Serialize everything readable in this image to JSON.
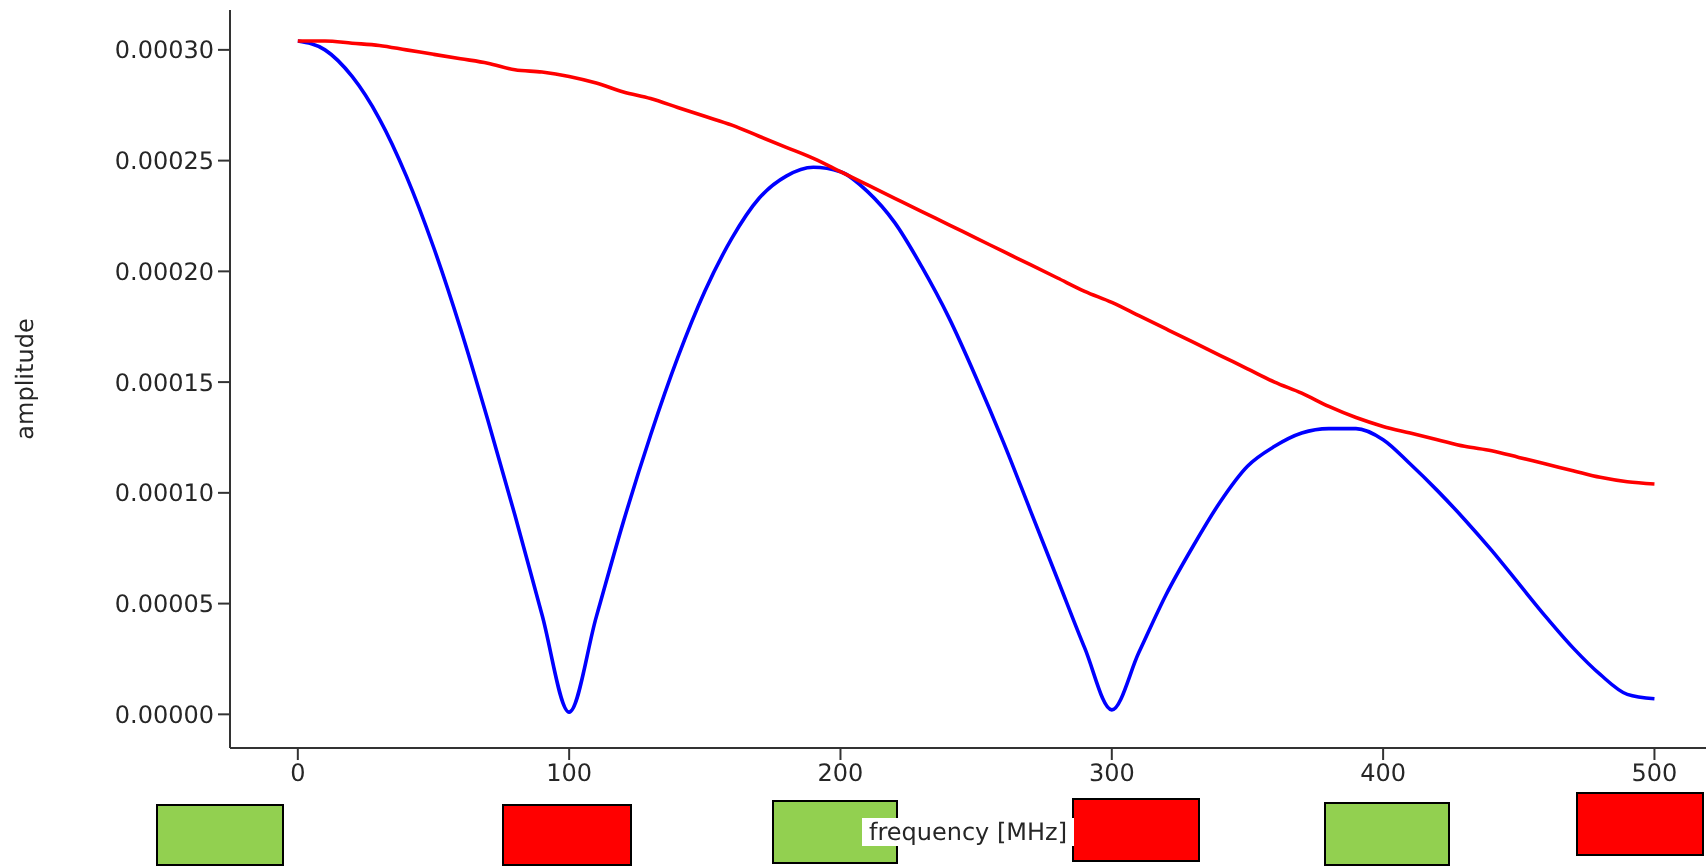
{
  "chart_data": {
    "type": "line",
    "xlabel": "frequency [MHz]",
    "ylabel": "amplitude",
    "x": [
      0,
      10,
      20,
      30,
      40,
      50,
      60,
      70,
      80,
      90,
      100,
      110,
      120,
      130,
      140,
      150,
      160,
      170,
      180,
      190,
      200,
      210,
      220,
      230,
      240,
      250,
      260,
      270,
      280,
      290,
      300,
      310,
      320,
      330,
      340,
      350,
      360,
      370,
      380,
      390,
      400,
      410,
      420,
      430,
      440,
      450,
      460,
      470,
      480,
      490,
      500
    ],
    "series": [
      {
        "color": "#0000ff",
        "values": [
          0.000304,
          0.0003,
          0.000288,
          0.000269,
          0.000243,
          0.000211,
          0.000174,
          0.000133,
          9e-05,
          4.5e-05,
          1e-06,
          4.4e-05,
          8.7e-05,
          0.000126,
          0.000161,
          0.000191,
          0.000215,
          0.000233,
          0.000243,
          0.000247,
          0.000245,
          0.000236,
          0.000222,
          0.000202,
          0.000179,
          0.000152,
          0.000123,
          9.2e-05,
          6.1e-05,
          3e-05,
          2e-06,
          2.8e-05,
          5.4e-05,
          7.6e-05,
          9.6e-05,
          0.000112,
          0.000121,
          0.000127,
          0.000129,
          0.000129,
          0.000124,
          0.000113,
          0.000101,
          8.8e-05,
          7.4e-05,
          5.9e-05,
          4.4e-05,
          3e-05,
          1.8e-05,
          9e-06,
          7e-06
        ]
      },
      {
        "color": "#ff0000",
        "values": [
          0.000304,
          0.000304,
          0.000303,
          0.000302,
          0.0003,
          0.000298,
          0.000296,
          0.000294,
          0.000291,
          0.00029,
          0.000288,
          0.000285,
          0.000281,
          0.000278,
          0.000274,
          0.00027,
          0.000266,
          0.000261,
          0.000256,
          0.000251,
          0.000245,
          0.000239,
          0.000233,
          0.000227,
          0.000221,
          0.000215,
          0.000209,
          0.000203,
          0.000197,
          0.000191,
          0.000186,
          0.00018,
          0.000174,
          0.000168,
          0.000162,
          0.000156,
          0.00015,
          0.000145,
          0.000139,
          0.000134,
          0.00013,
          0.000127,
          0.000124,
          0.000121,
          0.000119,
          0.000116,
          0.000113,
          0.00011,
          0.000107,
          0.000105,
          0.000104
        ]
      }
    ],
    "xlim": [
      -25,
      519
    ],
    "xticks": [
      0,
      100,
      200,
      300,
      400,
      500
    ],
    "ylim": [
      -1.52e-05,
      0.000318
    ],
    "yticks": [
      {
        "value": 0,
        "label": "0.00000"
      },
      {
        "value": 5e-05,
        "label": "0.00005"
      },
      {
        "value": 0.0001,
        "label": "0.00010"
      },
      {
        "value": 0.00015,
        "label": "0.00015"
      },
      {
        "value": 0.0002,
        "label": "0.00020"
      },
      {
        "value": 0.00025,
        "label": "0.00025"
      },
      {
        "value": 0.0003,
        "label": "0.00030"
      }
    ],
    "grid": false,
    "legend": false,
    "marker": "none",
    "line_style": "solid"
  }
}
